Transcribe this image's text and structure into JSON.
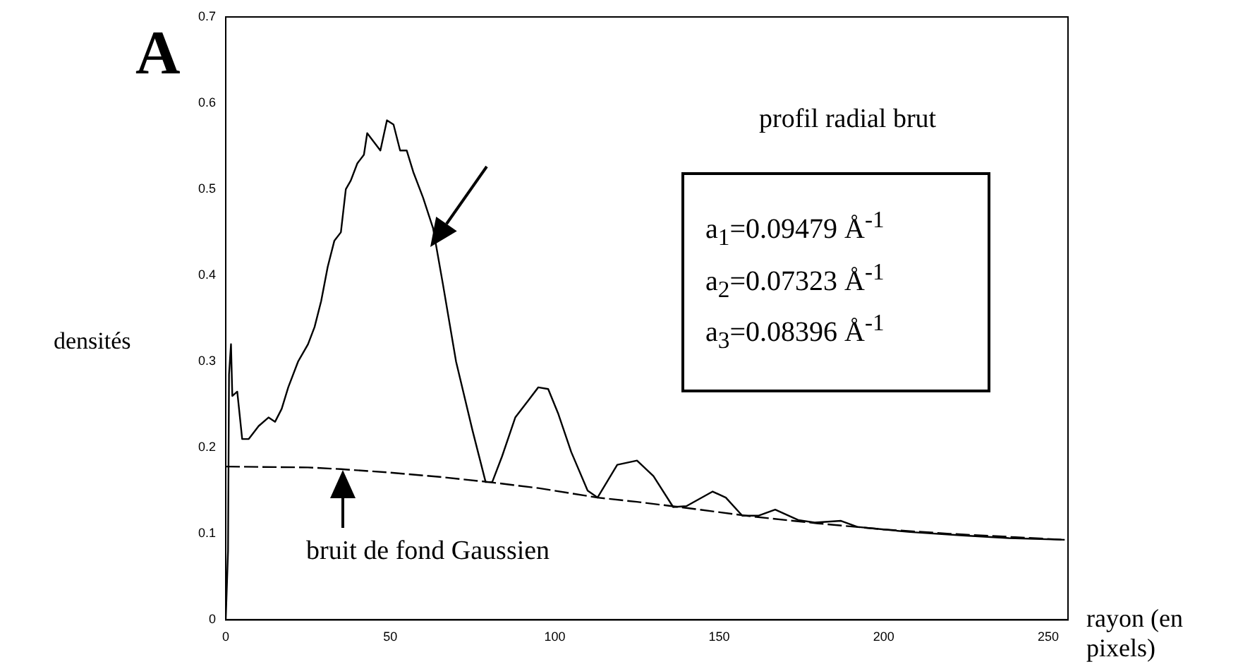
{
  "chart_data": {
    "type": "line",
    "xlabel": "rayon (en pixels)",
    "ylabel": "densités",
    "marker": "none",
    "xlim": [
      0,
      256
    ],
    "ylim": [
      0,
      0.7
    ],
    "xticks": [
      0,
      50,
      100,
      150,
      200,
      250
    ],
    "yticks": [
      0,
      0.1,
      0.2,
      0.3,
      0.4,
      0.5,
      0.6,
      0.7
    ],
    "annotations": [
      "A",
      "a$_{1}$=0.09479 Å$^{-1}$",
      "a$_{2}$=0.07323 Å$^{-1}$",
      "a$_{3}$=0.08396 Å$^{-1}$",
      "profil radial brut",
      "bruit de fond Gaussien"
    ],
    "series": [
      {
        "color": "#000000",
        "line_style": "solid",
        "x": [
          0,
          0.7,
          1,
          1.6,
          2,
          3.5,
          5,
          7,
          10,
          13,
          15,
          17,
          19,
          22,
          25,
          27,
          29,
          31,
          33,
          35,
          36.5,
          38,
          40,
          42,
          43,
          45,
          47,
          49,
          51,
          53,
          55,
          57,
          60,
          63,
          66,
          70,
          75,
          79,
          81,
          84,
          88,
          92,
          95,
          98,
          101,
          105,
          110,
          113,
          119,
          125,
          130,
          136,
          140,
          148,
          152,
          157,
          162,
          167,
          174,
          179,
          187,
          192,
          200,
          208,
          224,
          238,
          255
        ],
        "values": [
          0,
          0.08,
          0.285,
          0.32,
          0.26,
          0.265,
          0.21,
          0.21,
          0.225,
          0.235,
          0.23,
          0.245,
          0.27,
          0.3,
          0.32,
          0.34,
          0.37,
          0.41,
          0.44,
          0.45,
          0.5,
          0.51,
          0.53,
          0.54,
          0.565,
          0.555,
          0.545,
          0.58,
          0.575,
          0.545,
          0.545,
          0.52,
          0.49,
          0.455,
          0.39,
          0.3,
          0.22,
          0.16,
          0.16,
          0.19,
          0.235,
          0.255,
          0.27,
          0.268,
          0.24,
          0.195,
          0.15,
          0.142,
          0.18,
          0.185,
          0.167,
          0.131,
          0.132,
          0.149,
          0.142,
          0.121,
          0.121,
          0.128,
          0.116,
          0.113,
          0.115,
          0.108,
          0.105,
          0.102,
          0.098,
          0.095,
          0.093
        ]
      },
      {
        "color": "#000000",
        "line_style": "dashed",
        "x": [
          0,
          25,
          35,
          50,
          65,
          80,
          95,
          113,
          125,
          140,
          160,
          180,
          200,
          220,
          240,
          255
        ],
        "values": [
          0.178,
          0.177,
          0.175,
          0.171,
          0.166,
          0.16,
          0.153,
          0.142,
          0.137,
          0.13,
          0.12,
          0.112,
          0.105,
          0.1,
          0.096,
          0.093
        ]
      }
    ]
  }
}
